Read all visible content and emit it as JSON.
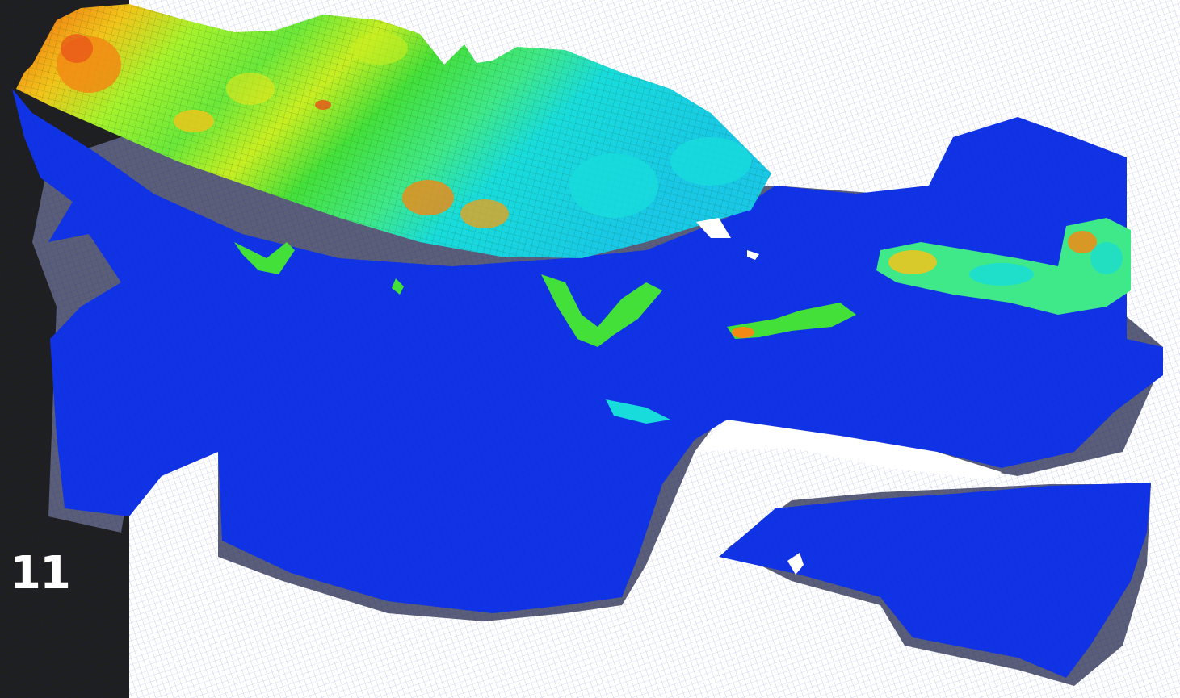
{
  "slide": {
    "page_number": "11"
  },
  "model": {
    "description_icon": "3d-reservoir-grid-icon",
    "colors": {
      "base": "#1133e6",
      "shadow": "#5a5e78",
      "green": "#44e03a",
      "lime": "#a6f22c",
      "yellow": "#f2e61a",
      "orange": "#f28a14",
      "red": "#e8501a",
      "cyan": "#18dcdc",
      "side_strip": "#1f1f1f",
      "page_number": "#ffffff"
    }
  }
}
